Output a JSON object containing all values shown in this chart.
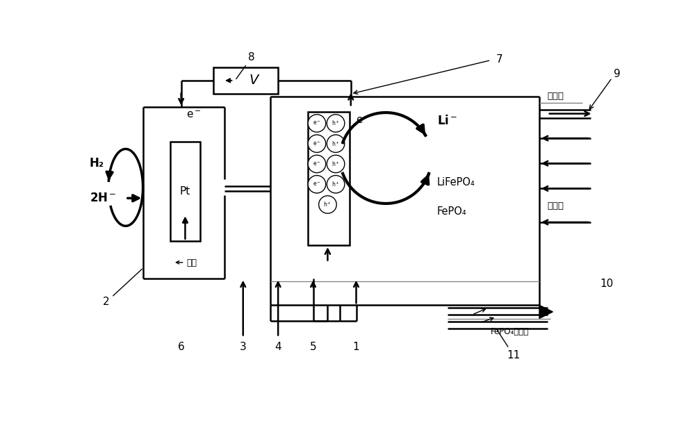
{
  "bg": "#ffffff",
  "lc": "#000000",
  "labels": {
    "H2": "H₂",
    "2Hminus": "2H⁻",
    "Pt": "Pt",
    "xijian": "稀酸",
    "eminus": "e⁻",
    "Liminus": "Li⁻",
    "LiFePO4": "LiFePO₄",
    "FePO4": "FePO₄",
    "chuliqou": "出液口",
    "jinliakou": "进料口",
    "FePO4collect": "FePO₄收集口"
  }
}
